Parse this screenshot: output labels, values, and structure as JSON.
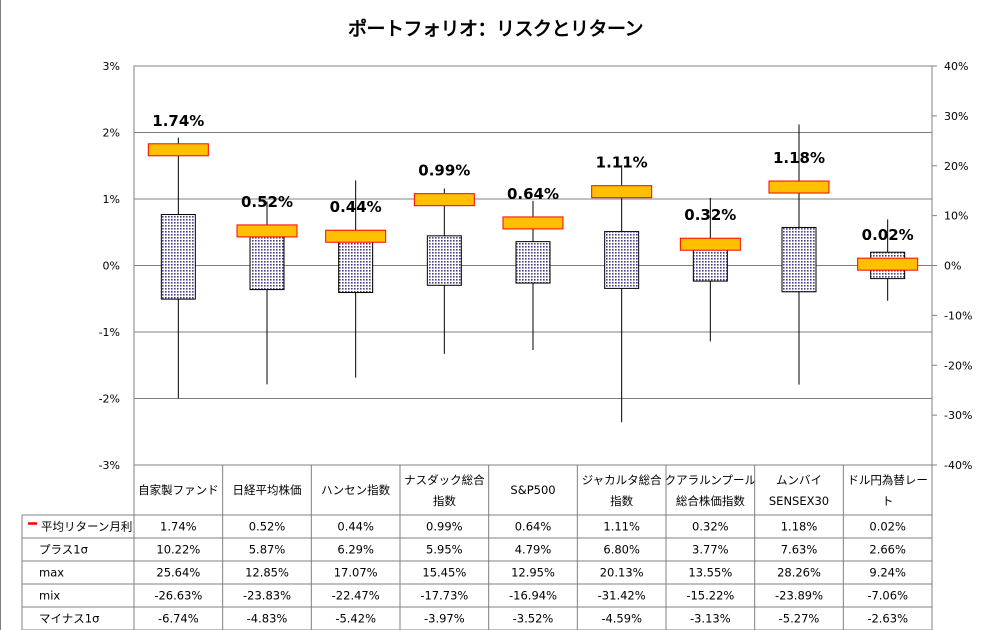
{
  "chart_data": {
    "type": "boxplot",
    "title": "ポートフォリオ：リスクとリターン",
    "categories": [
      [
        "自家製ファンド"
      ],
      [
        "日経平均株価"
      ],
      [
        "ハンセン指数"
      ],
      [
        "ナスダック総合",
        "指数"
      ],
      [
        "S&P500"
      ],
      [
        "ジャカルタ総合",
        "指数"
      ],
      [
        "クアラルンプール",
        "総合株価指数"
      ],
      [
        "ムンバイ",
        "SENSEX30"
      ],
      [
        "ドル円為替レー",
        "ト"
      ]
    ],
    "mean_labels": [
      "1.74%",
      "0.52%",
      "0.44%",
      "0.99%",
      "0.64%",
      "1.11%",
      "0.32%",
      "1.18%",
      "0.02%"
    ],
    "left_axis": {
      "ylim": [
        -3,
        3
      ],
      "ticks": [
        "3%",
        "2%",
        "1%",
        "0%",
        "-1%",
        "-2%",
        "-3%"
      ]
    },
    "right_axis": {
      "ylim": [
        -40,
        40
      ],
      "ticks": [
        "40%",
        "30%",
        "20%",
        "10%",
        "0%",
        "-10%",
        "-20%",
        "-30%",
        "-40%"
      ]
    },
    "series": [
      {
        "name": "平均リターン月利",
        "axis": "left",
        "values": [
          1.74,
          0.52,
          0.44,
          0.99,
          0.64,
          1.11,
          0.32,
          1.18,
          0.02
        ],
        "display": [
          "1.74%",
          "0.52%",
          "0.44%",
          "0.99%",
          "0.64%",
          "1.11%",
          "0.32%",
          "1.18%",
          "0.02%"
        ]
      },
      {
        "name": "プラス1σ",
        "axis": "right",
        "values": [
          10.22,
          5.87,
          6.29,
          5.95,
          4.79,
          6.8,
          3.77,
          7.63,
          2.66
        ],
        "display": [
          "10.22%",
          "5.87%",
          "6.29%",
          "5.95%",
          "4.79%",
          "6.80%",
          "3.77%",
          "7.63%",
          "2.66%"
        ]
      },
      {
        "name": "max",
        "axis": "right",
        "values": [
          25.64,
          12.85,
          17.07,
          15.45,
          12.95,
          20.13,
          13.55,
          28.26,
          9.24
        ],
        "display": [
          "25.64%",
          "12.85%",
          "17.07%",
          "15.45%",
          "12.95%",
          "20.13%",
          "13.55%",
          "28.26%",
          "9.24%"
        ]
      },
      {
        "name": "mix",
        "axis": "right",
        "values": [
          -26.63,
          -23.83,
          -22.47,
          -17.73,
          -16.94,
          -31.42,
          -15.22,
          -23.89,
          -7.06
        ],
        "display": [
          "-26.63%",
          "-23.83%",
          "-22.47%",
          "-17.73%",
          "-16.94%",
          "-31.42%",
          "-15.22%",
          "-23.89%",
          "-7.06%"
        ]
      },
      {
        "name": "マイナス1σ",
        "axis": "right",
        "values": [
          -6.74,
          -4.83,
          -5.42,
          -3.97,
          -3.52,
          -4.59,
          -3.13,
          -5.27,
          -2.63
        ],
        "display": [
          "-6.74%",
          "-4.83%",
          "-5.42%",
          "-3.97%",
          "-3.52%",
          "-4.59%",
          "-3.13%",
          "-5.27%",
          "-2.63%"
        ]
      }
    ],
    "gridlines": true,
    "colors": {
      "mean_fill": "#FFC000",
      "mean_border": "#FF0000",
      "box_fill": "#C8C0E0",
      "box_border": "#000000",
      "grid": "#808080"
    }
  }
}
